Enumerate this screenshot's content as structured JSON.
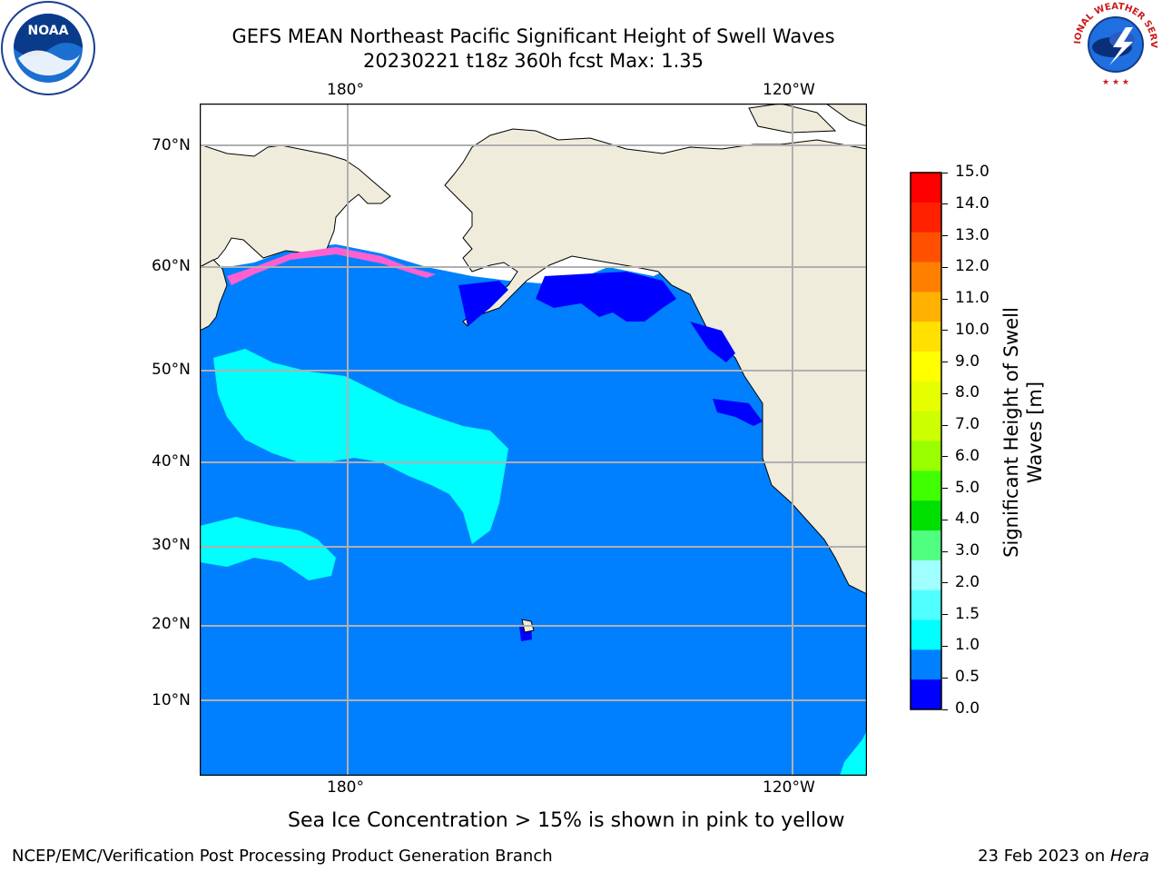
{
  "header": {
    "title_line1": "GEFS MEAN Northeast Pacific Significant Height of Swell Waves",
    "title_line2": "20230221 t18z 360h fcst   Max: 1.35"
  },
  "logos": {
    "left": {
      "icon": "noaa-logo-icon",
      "text": "NOAA"
    },
    "right": {
      "icon": "nws-logo-icon",
      "ring_text": "NATIONAL WEATHER SERVICE"
    }
  },
  "map": {
    "lon_labels_top": [
      "180°",
      "120°W"
    ],
    "lon_labels_bottom": [
      "180°",
      "120°W"
    ],
    "lat_labels": [
      "70°N",
      "60°N",
      "50°N",
      "40°N",
      "30°N",
      "20°N",
      "10°N"
    ],
    "colors": {
      "land": "#efecdc",
      "ice_free_white": "#ffffff",
      "grid": "#b0b0b0"
    }
  },
  "colorbar": {
    "label_line1": "Significant Height of Swell",
    "label_line2": "Waves [m]",
    "ticks": [
      "15.0",
      "14.0",
      "13.0",
      "12.0",
      "11.0",
      "10.0",
      "9.0",
      "8.0",
      "7.0",
      "6.0",
      "5.0",
      "4.0",
      "3.0",
      "2.0",
      "1.5",
      "1.0",
      "0.5",
      "0.0"
    ],
    "colors_top_to_bottom": [
      "#ff0000",
      "#ff2000",
      "#ff5000",
      "#ff8000",
      "#ffb000",
      "#ffe000",
      "#ffff00",
      "#e6ff00",
      "#ccff00",
      "#99ff00",
      "#40ff00",
      "#00e000",
      "#50ff80",
      "#a0ffff",
      "#50ffff",
      "#00ffff",
      "#0080ff",
      "#0000ff"
    ]
  },
  "caption": "Sea Ice Concentration > 15% is shown in pink to yellow",
  "footer": {
    "left": "NCEP/EMC/Verification Post Processing Product Generation Branch",
    "right_prefix": "23 Feb 2023 on ",
    "right_host": "Hera"
  }
}
